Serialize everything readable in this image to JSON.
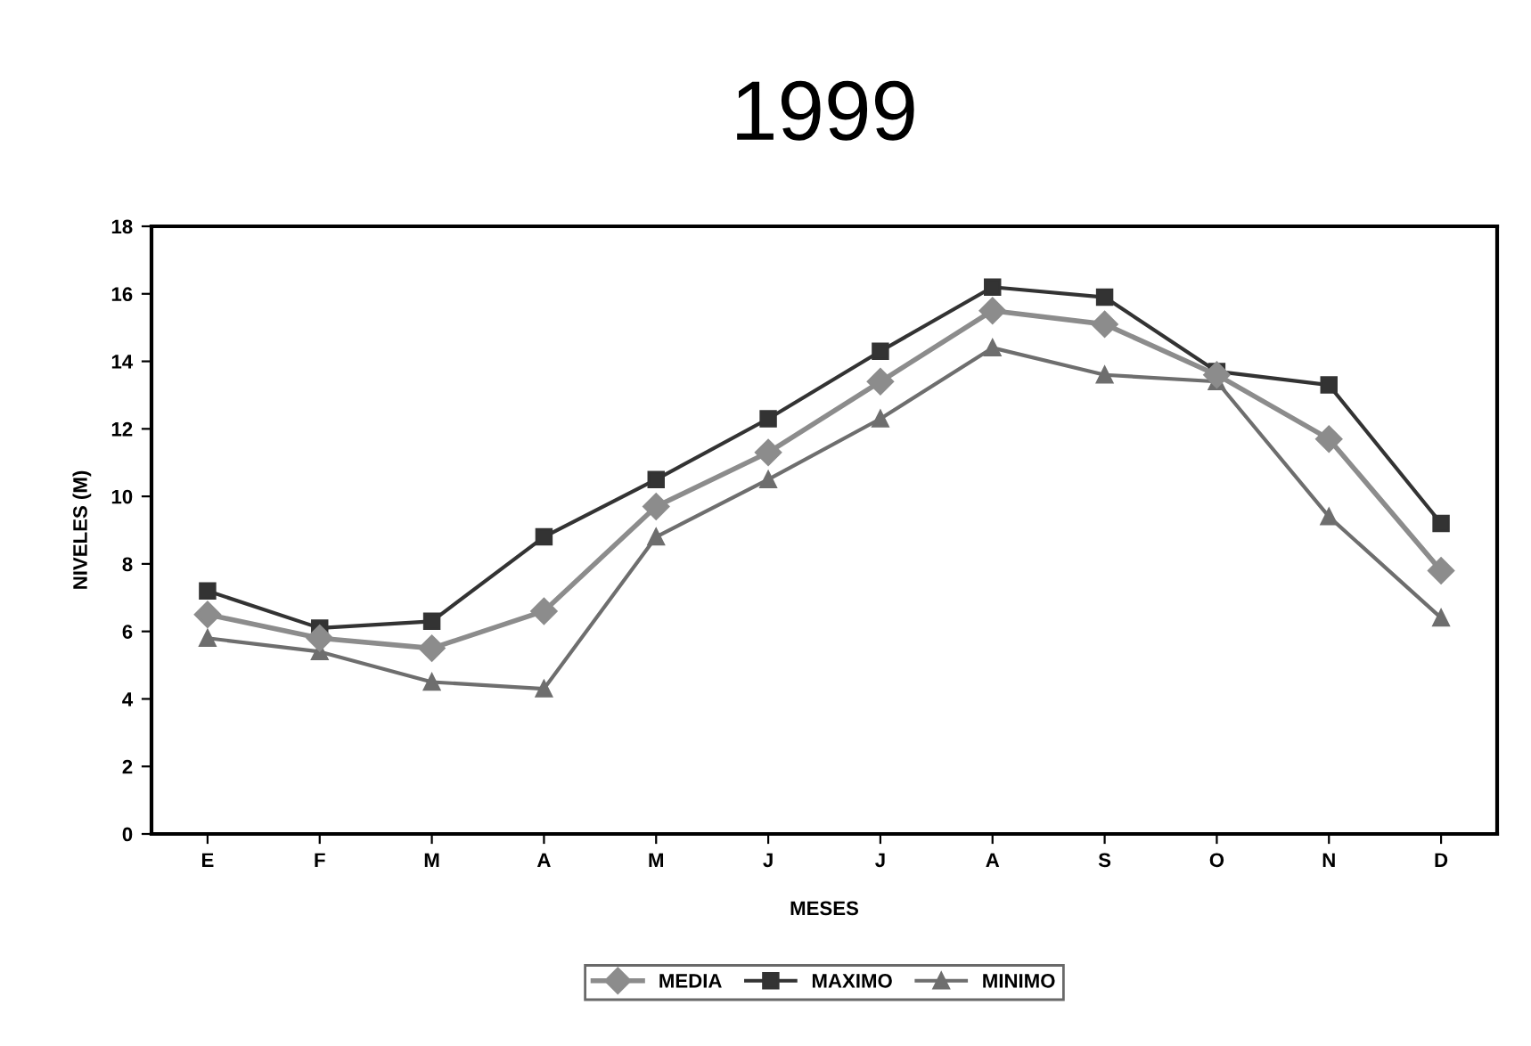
{
  "chart_data": {
    "type": "line",
    "title": "1999",
    "xlabel": "MESES",
    "ylabel": "NIVELES (M)",
    "categories": [
      "E",
      "F",
      "M",
      "A",
      "M",
      "J",
      "J",
      "A",
      "S",
      "O",
      "N",
      "D"
    ],
    "series": [
      {
        "name": "MEDIA",
        "color": "#8c8c8c",
        "marker": "diamond",
        "values": [
          6.5,
          5.8,
          5.5,
          6.6,
          9.7,
          11.3,
          13.4,
          15.5,
          15.1,
          13.6,
          11.7,
          7.8
        ]
      },
      {
        "name": "MAXIMO",
        "color": "#333333",
        "marker": "square",
        "values": [
          7.2,
          6.1,
          6.3,
          8.8,
          10.5,
          12.3,
          14.3,
          16.2,
          15.9,
          13.7,
          13.3,
          9.2
        ]
      },
      {
        "name": "MINIMO",
        "color": "#6e6e6e",
        "marker": "triangle",
        "values": [
          5.8,
          5.4,
          4.5,
          4.3,
          8.8,
          10.5,
          12.3,
          14.4,
          13.6,
          13.4,
          9.4,
          6.4
        ]
      }
    ],
    "ylim": [
      0,
      18
    ],
    "yticks": [
      0,
      2,
      4,
      6,
      8,
      10,
      12,
      14,
      16,
      18
    ],
    "grid": false,
    "legend": "bottom",
    "line_style": "solid"
  }
}
